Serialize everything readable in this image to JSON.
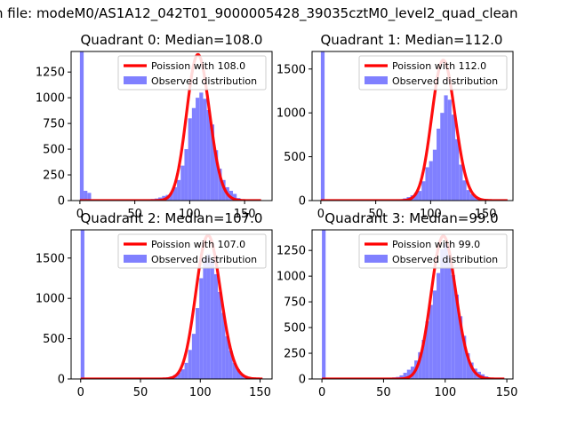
{
  "figure": {
    "suptitle": "n file: modeM0/AS1A12_042T01_9000005428_39035cztM0_level2_quad_clean",
    "colors": {
      "histogram": "#8080ff",
      "fit": "#ff0000",
      "axes": "#000000"
    }
  },
  "chart_data": [
    {
      "type": "bar+line",
      "title": "Quadrant 0: Median=108.0",
      "median": 108.0,
      "legend": {
        "fit": "Poission with 108.0",
        "hist": "Observed distribution",
        "placement": "top-right"
      },
      "xlim": [
        -8,
        175
      ],
      "ylim": [
        0,
        1450
      ],
      "xticks": [
        0,
        50,
        100,
        150
      ],
      "yticks": [
        0,
        250,
        500,
        750,
        1000,
        1250
      ],
      "hist_bin_width": 3.4,
      "hist": [
        [
          0,
          1450
        ],
        [
          3.4,
          95
        ],
        [
          6.8,
          75
        ],
        [
          10.2,
          10
        ],
        [
          13.6,
          8
        ],
        [
          17,
          6
        ],
        [
          20.4,
          5
        ],
        [
          23.8,
          5
        ],
        [
          27.2,
          5
        ],
        [
          30.6,
          5
        ],
        [
          34,
          5
        ],
        [
          37.4,
          5
        ],
        [
          40.8,
          5
        ],
        [
          44.2,
          5
        ],
        [
          47.6,
          5
        ],
        [
          51,
          6
        ],
        [
          54.4,
          8
        ],
        [
          57.8,
          10
        ],
        [
          61.2,
          12
        ],
        [
          64.6,
          15
        ],
        [
          68,
          20
        ],
        [
          71.4,
          30
        ],
        [
          74.8,
          45
        ],
        [
          78.2,
          55
        ],
        [
          81.6,
          75
        ],
        [
          85,
          130
        ],
        [
          88.4,
          200
        ],
        [
          91.8,
          340
        ],
        [
          95.2,
          500
        ],
        [
          98.6,
          800
        ],
        [
          102,
          900
        ],
        [
          105.4,
          1000
        ],
        [
          108.8,
          1050
        ],
        [
          112.2,
          990
        ],
        [
          115.6,
          880
        ],
        [
          119,
          740
        ],
        [
          122.4,
          490
        ],
        [
          125.8,
          310
        ],
        [
          129.2,
          200
        ],
        [
          132.6,
          130
        ],
        [
          136,
          95
        ],
        [
          139.4,
          65
        ],
        [
          142.8,
          25
        ],
        [
          146.2,
          10
        ]
      ],
      "fit": {
        "lambda": 108.0,
        "peak": 1420,
        "x_range": [
          0,
          165
        ]
      }
    },
    {
      "type": "bar+line",
      "title": "Quadrant 1: Median=112.0",
      "median": 112.0,
      "legend": {
        "fit": "Poission with 112.0",
        "hist": "Observed distribution",
        "placement": "top-right"
      },
      "xlim": [
        -8,
        175
      ],
      "ylim": [
        0,
        1700
      ],
      "xticks": [
        0,
        50,
        100,
        150
      ],
      "yticks": [
        0,
        500,
        1000,
        1500
      ],
      "hist_bin_width": 3.4,
      "hist": [
        [
          0,
          1700
        ],
        [
          3.4,
          5
        ],
        [
          6.8,
          5
        ],
        [
          10.2,
          5
        ],
        [
          13.6,
          5
        ],
        [
          17,
          5
        ],
        [
          20.4,
          5
        ],
        [
          23.8,
          5
        ],
        [
          27.2,
          5
        ],
        [
          30.6,
          5
        ],
        [
          34,
          5
        ],
        [
          37.4,
          5
        ],
        [
          40.8,
          5
        ],
        [
          44.2,
          5
        ],
        [
          47.6,
          5
        ],
        [
          51,
          5
        ],
        [
          54.4,
          5
        ],
        [
          57.8,
          5
        ],
        [
          61.2,
          6
        ],
        [
          64.6,
          8
        ],
        [
          68,
          12
        ],
        [
          71.4,
          15
        ],
        [
          74.8,
          25
        ],
        [
          78.2,
          40
        ],
        [
          81.6,
          60
        ],
        [
          85,
          90
        ],
        [
          88.4,
          110
        ],
        [
          91.8,
          220
        ],
        [
          95.2,
          380
        ],
        [
          98.6,
          450
        ],
        [
          102,
          580
        ],
        [
          105.4,
          820
        ],
        [
          108.8,
          1000
        ],
        [
          112.2,
          1200
        ],
        [
          115.6,
          1150
        ],
        [
          119,
          980
        ],
        [
          122.4,
          700
        ],
        [
          125.8,
          410
        ],
        [
          129.2,
          230
        ],
        [
          132.6,
          120
        ],
        [
          136,
          75
        ],
        [
          139.4,
          40
        ],
        [
          142.8,
          20
        ],
        [
          146.2,
          5
        ]
      ],
      "fit": {
        "lambda": 112.0,
        "peak": 1600,
        "x_range": [
          0,
          170
        ]
      }
    },
    {
      "type": "bar+line",
      "title": "Quadrant 2: Median=107.0",
      "median": 107.0,
      "legend": {
        "fit": "Poission with 107.0",
        "hist": "Observed distribution",
        "placement": "top-right"
      },
      "xlim": [
        -8,
        160
      ],
      "ylim": [
        0,
        1850
      ],
      "xticks": [
        0,
        50,
        100,
        150
      ],
      "yticks": [
        0,
        500,
        1000,
        1500
      ],
      "hist_bin_width": 3.1,
      "hist": [
        [
          0,
          1850
        ],
        [
          3.1,
          5
        ],
        [
          6.2,
          5
        ],
        [
          9.3,
          5
        ],
        [
          12.4,
          5
        ],
        [
          15.5,
          5
        ],
        [
          18.6,
          5
        ],
        [
          21.7,
          5
        ],
        [
          24.8,
          5
        ],
        [
          27.9,
          5
        ],
        [
          31,
          5
        ],
        [
          34.1,
          5
        ],
        [
          37.2,
          5
        ],
        [
          40.3,
          5
        ],
        [
          43.4,
          5
        ],
        [
          46.5,
          5
        ],
        [
          49.6,
          5
        ],
        [
          52.7,
          5
        ],
        [
          55.8,
          6
        ],
        [
          58.9,
          8
        ],
        [
          62,
          10
        ],
        [
          65.1,
          12
        ],
        [
          68.2,
          15
        ],
        [
          71.3,
          20
        ],
        [
          74.4,
          30
        ],
        [
          77.5,
          50
        ],
        [
          80.6,
          80
        ],
        [
          83.7,
          120
        ],
        [
          86.8,
          200
        ],
        [
          89.9,
          360
        ],
        [
          93,
          560
        ],
        [
          96.1,
          880
        ],
        [
          99.2,
          1250
        ],
        [
          102.3,
          1500
        ],
        [
          105.4,
          1550
        ],
        [
          108.5,
          1480
        ],
        [
          111.6,
          1300
        ],
        [
          114.7,
          1080
        ],
        [
          117.8,
          820
        ],
        [
          120.9,
          530
        ],
        [
          124,
          350
        ],
        [
          127.1,
          200
        ],
        [
          130.2,
          120
        ],
        [
          133.3,
          60
        ],
        [
          136.4,
          30
        ],
        [
          139.5,
          10
        ]
      ],
      "fit": {
        "lambda": 107.0,
        "peak": 1780,
        "x_range": [
          0,
          152
        ]
      }
    },
    {
      "type": "bar+line",
      "title": "Quadrant 3: Median=99.0",
      "median": 99.0,
      "legend": {
        "fit": "Poission with 99.0",
        "hist": "Observed distribution",
        "placement": "top-right"
      },
      "xlim": [
        -8,
        155
      ],
      "ylim": [
        0,
        1450
      ],
      "xticks": [
        0,
        50,
        100,
        150
      ],
      "yticks": [
        0,
        250,
        500,
        750,
        1000,
        1250
      ],
      "hist_bin_width": 3.0,
      "hist": [
        [
          0,
          1450
        ],
        [
          3,
          5
        ],
        [
          6,
          5
        ],
        [
          9,
          5
        ],
        [
          12,
          5
        ],
        [
          15,
          5
        ],
        [
          18,
          5
        ],
        [
          21,
          5
        ],
        [
          24,
          5
        ],
        [
          27,
          5
        ],
        [
          30,
          5
        ],
        [
          33,
          5
        ],
        [
          36,
          5
        ],
        [
          39,
          5
        ],
        [
          42,
          5
        ],
        [
          45,
          5
        ],
        [
          48,
          6
        ],
        [
          51,
          8
        ],
        [
          54,
          10
        ],
        [
          57,
          15
        ],
        [
          60,
          20
        ],
        [
          63,
          35
        ],
        [
          66,
          60
        ],
        [
          69,
          90
        ],
        [
          72,
          120
        ],
        [
          75,
          180
        ],
        [
          78,
          260
        ],
        [
          81,
          380
        ],
        [
          84,
          560
        ],
        [
          87,
          720
        ],
        [
          90,
          860
        ],
        [
          93,
          1030
        ],
        [
          96,
          1260
        ],
        [
          99,
          1320
        ],
        [
          102,
          1220
        ],
        [
          105,
          1010
        ],
        [
          108,
          820
        ],
        [
          111,
          610
        ],
        [
          114,
          420
        ],
        [
          117,
          250
        ],
        [
          120,
          160
        ],
        [
          123,
          100
        ],
        [
          126,
          70
        ],
        [
          129,
          45
        ],
        [
          132,
          25
        ],
        [
          135,
          12
        ],
        [
          138,
          5
        ]
      ],
      "fit": {
        "lambda": 99.0,
        "peak": 1390,
        "x_range": [
          0,
          148
        ]
      }
    }
  ]
}
